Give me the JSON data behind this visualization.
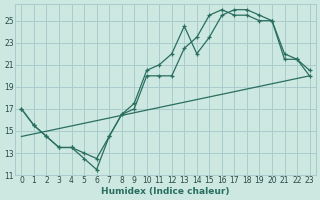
{
  "xlabel": "Humidex (Indice chaleur)",
  "bg_color": "#cce8e0",
  "grid_color": "#aacccc",
  "line_color": "#2a6e60",
  "xlim": [
    -0.5,
    23.5
  ],
  "ylim": [
    11,
    26.5
  ],
  "xtick_labels": [
    "0",
    "1",
    "2",
    "3",
    "4",
    "5",
    "6",
    "7",
    "8",
    "9",
    "10",
    "11",
    "12",
    "13",
    "14",
    "15",
    "16",
    "17",
    "18",
    "19",
    "20",
    "21",
    "22",
    "23"
  ],
  "xtick_vals": [
    0,
    1,
    2,
    3,
    4,
    5,
    6,
    7,
    8,
    9,
    10,
    11,
    12,
    13,
    14,
    15,
    16,
    17,
    18,
    19,
    20,
    21,
    22,
    23
  ],
  "ytick_vals": [
    11,
    13,
    15,
    17,
    19,
    21,
    23,
    25
  ],
  "curve1_x": [
    0,
    1,
    2,
    3,
    4,
    5,
    6,
    7,
    8,
    9,
    10,
    11,
    12,
    13,
    14,
    15,
    16,
    17,
    18,
    19,
    20,
    21,
    22,
    23
  ],
  "curve1_y": [
    17,
    15.5,
    14.5,
    13.5,
    13.5,
    13,
    12.5,
    14.5,
    16.5,
    17.5,
    20.5,
    21,
    22,
    24.5,
    22,
    23.5,
    25.5,
    26,
    26,
    25.5,
    25,
    21.5,
    21.5,
    20.5
  ],
  "curve2_x": [
    0,
    1,
    2,
    3,
    4,
    5,
    6,
    7,
    8,
    9,
    10,
    11,
    12,
    13,
    14,
    15,
    16,
    17,
    18,
    19,
    20,
    21,
    22,
    23
  ],
  "curve2_y": [
    17,
    15.5,
    14.5,
    13.5,
    13.5,
    12.5,
    11.5,
    14.5,
    16.5,
    17,
    20,
    20,
    20,
    22.5,
    23.5,
    25.5,
    26,
    25.5,
    25.5,
    25,
    25,
    22,
    21.5,
    20
  ],
  "trend_x": [
    0,
    23
  ],
  "trend_y": [
    14.5,
    20
  ]
}
